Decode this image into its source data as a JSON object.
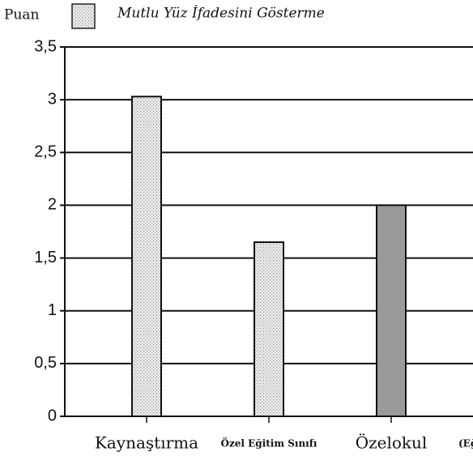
{
  "chart_data": {
    "type": "bar",
    "y_label": "Puan",
    "x_label": "(Eğ",
    "categories": [
      "Kaynaştırma",
      "Özel Eğitim Sınıfı",
      "Özelokul"
    ],
    "series": [
      {
        "name": "Mutlu Yüz İfadesini Gösterme",
        "color": "#d4d4d4",
        "values": [
          3.03,
          1.65,
          2.0
        ]
      }
    ],
    "ylim": [
      0,
      3.5
    ],
    "yticks": [
      0,
      {
        "value": 0.5,
        "label": "0,5"
      },
      1,
      {
        "value": 1.5,
        "label": "1,5"
      },
      2,
      {
        "value": 2.5,
        "label": "2,5"
      },
      3,
      {
        "value": 3.5,
        "label": "3,5"
      }
    ],
    "grid": true
  }
}
